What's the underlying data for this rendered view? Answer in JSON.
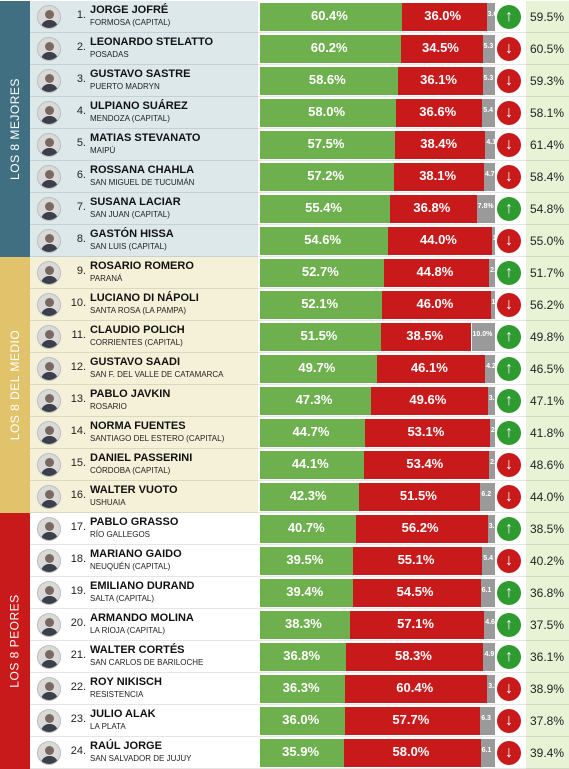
{
  "groups": [
    {
      "label": "LOS 8 MEJORES",
      "color": "#3f6f80",
      "band": "#dce8ea"
    },
    {
      "label": "LOS 8 DEL MEDIO",
      "color": "#e0c36a",
      "band": "#f5f0d8"
    },
    {
      "label": "LOS 8 PEORES",
      "color": "#c8191b",
      "band": "#ffffff"
    }
  ],
  "colors": {
    "positive": "#6eb04d",
    "negative": "#c8191b",
    "ns": "#9a9a9a",
    "up": "#2f9a2f",
    "down": "#c8191b"
  },
  "chart_data": {
    "type": "bar",
    "categories": [
      "JORGE JOFRÉ",
      "LEONARDO STELATTO",
      "GUSTAVO SASTRE",
      "ULPIANO SUÁREZ",
      "MATIAS STEVANATO",
      "ROSSANA CHAHLA",
      "SUSANA LACIAR",
      "GASTÓN HISSA",
      "ROSARIO ROMERO",
      "LUCIANO DI NÁPOLI",
      "CLAUDIO POLICH",
      "GUSTAVO SAADI",
      "PABLO JAVKIN",
      "NORMA FUENTES",
      "DANIEL PASSERINI",
      "WALTER VUOTO",
      "PABLO GRASSO",
      "MARIANO GAIDO",
      "EMILIANO DURAND",
      "ARMANDO MOLINA",
      "WALTER CORTÉS",
      "ROY NIKISCH",
      "JULIO ALAK",
      "RAÚL JORGE"
    ],
    "series": [
      {
        "values": [
          60.4,
          60.2,
          58.6,
          58.0,
          57.5,
          57.2,
          55.4,
          54.6,
          52.7,
          52.1,
          51.5,
          49.7,
          47.3,
          44.7,
          44.1,
          42.3,
          40.7,
          39.5,
          39.4,
          38.3,
          36.8,
          36.3,
          36.0,
          35.9
        ]
      },
      {
        "values": [
          36.0,
          34.5,
          36.1,
          36.6,
          38.4,
          38.1,
          36.8,
          44.0,
          44.8,
          46.0,
          38.5,
          46.1,
          49.6,
          53.1,
          53.4,
          51.5,
          56.2,
          55.1,
          54.5,
          57.1,
          58.3,
          60.4,
          57.7,
          58.0
        ]
      },
      {
        "values": [
          3.6,
          5.3,
          5.3,
          5.4,
          4.1,
          4.7,
          7.8,
          1.4,
          2.5,
          1.9,
          10.0,
          4.2,
          3.1,
          2.2,
          2.5,
          6.2,
          3.1,
          5.4,
          6.1,
          4.6,
          4.9,
          3.3,
          6.3,
          6.1
        ]
      }
    ],
    "ylim": [
      0,
      100
    ]
  },
  "rows": [
    {
      "rank": "1.",
      "name": "JORGE JOFRÉ",
      "city": "FORMOSA (CAPITAL)",
      "pos": 60.4,
      "pos_label": "60.4%",
      "neg": 36.0,
      "neg_label": "36.0%",
      "ns": 3.6,
      "ns_label": "3.6",
      "trend": "up",
      "prev": "59.5%"
    },
    {
      "rank": "2.",
      "name": "LEONARDO STELATTO",
      "city": "POSADAS",
      "pos": 60.2,
      "pos_label": "60.2%",
      "neg": 34.5,
      "neg_label": "34.5%",
      "ns": 5.3,
      "ns_label": "5.3",
      "trend": "down",
      "prev": "60.5%"
    },
    {
      "rank": "3.",
      "name": "GUSTAVO SASTRE",
      "city": "PUERTO MADRYN",
      "pos": 58.6,
      "pos_label": "58.6%",
      "neg": 36.1,
      "neg_label": "36.1%",
      "ns": 5.3,
      "ns_label": "5.3",
      "trend": "down",
      "prev": "59.3%"
    },
    {
      "rank": "4.",
      "name": "ULPIANO SUÁREZ",
      "city": "MENDOZA (CAPITAL)",
      "pos": 58.0,
      "pos_label": "58.0%",
      "neg": 36.6,
      "neg_label": "36.6%",
      "ns": 5.4,
      "ns_label": "5.4",
      "trend": "down",
      "prev": "58.1%"
    },
    {
      "rank": "5.",
      "name": "MATIAS STEVANATO",
      "city": "MAIPÚ",
      "pos": 57.5,
      "pos_label": "57.5%",
      "neg": 38.4,
      "neg_label": "38.4%",
      "ns": 4.1,
      "ns_label": "4.1",
      "trend": "down",
      "prev": "61.4%"
    },
    {
      "rank": "6.",
      "name": "ROSSANA CHAHLA",
      "city": "SAN MIGUEL DE TUCUMÁN",
      "pos": 57.2,
      "pos_label": "57.2%",
      "neg": 38.1,
      "neg_label": "38.1%",
      "ns": 4.7,
      "ns_label": "4.7",
      "trend": "down",
      "prev": "58.4%"
    },
    {
      "rank": "7.",
      "name": "SUSANA LACIAR",
      "city": "SAN JUAN (CAPITAL)",
      "pos": 55.4,
      "pos_label": "55.4%",
      "neg": 36.8,
      "neg_label": "36.8%",
      "ns": 7.8,
      "ns_label": "7.8%",
      "trend": "up",
      "prev": "54.8%"
    },
    {
      "rank": "8.",
      "name": "GASTÓN HISSA",
      "city": "SAN LUIS (CAPITAL)",
      "pos": 54.6,
      "pos_label": "54.6%",
      "neg": 44.0,
      "neg_label": "44.0%",
      "ns": 1.4,
      "ns_label": "1.4",
      "trend": "down",
      "prev": "55.0%"
    },
    {
      "rank": "9.",
      "name": "ROSARIO ROMERO",
      "city": "PARANÁ",
      "pos": 52.7,
      "pos_label": "52.7%",
      "neg": 44.8,
      "neg_label": "44.8%",
      "ns": 2.5,
      "ns_label": "2.5",
      "trend": "up",
      "prev": "51.7%"
    },
    {
      "rank": "10.",
      "name": "LUCIANO DI NÁPOLI",
      "city": "SANTA ROSA (LA PAMPA)",
      "pos": 52.1,
      "pos_label": "52.1%",
      "neg": 46.0,
      "neg_label": "46.0%",
      "ns": 1.9,
      "ns_label": "1.9",
      "trend": "down",
      "prev": "56.2%"
    },
    {
      "rank": "11.",
      "name": "CLAUDIO POLICH",
      "city": "CORRIENTES (CAPITAL)",
      "pos": 51.5,
      "pos_label": "51.5%",
      "neg": 38.5,
      "neg_label": "38.5%",
      "ns": 10.0,
      "ns_label": "10.0%",
      "trend": "up",
      "prev": "49.8%"
    },
    {
      "rank": "12.",
      "name": "GUSTAVO SAADI",
      "city": "SAN F. DEL VALLE DE CATAMARCA",
      "pos": 49.7,
      "pos_label": "49.7%",
      "neg": 46.1,
      "neg_label": "46.1%",
      "ns": 4.2,
      "ns_label": "4.2",
      "trend": "up",
      "prev": "46.5%"
    },
    {
      "rank": "13.",
      "name": "PABLO JAVKIN",
      "city": "ROSARIO",
      "pos": 47.3,
      "pos_label": "47.3%",
      "neg": 49.6,
      "neg_label": "49.6%",
      "ns": 3.1,
      "ns_label": "3.1",
      "trend": "up",
      "prev": "47.1%"
    },
    {
      "rank": "14.",
      "name": "NORMA FUENTES",
      "city": "SANTIAGO DEL ESTERO (CAPITAL)",
      "pos": 44.7,
      "pos_label": "44.7%",
      "neg": 53.1,
      "neg_label": "53.1%",
      "ns": 2.2,
      "ns_label": "2.2",
      "trend": "up",
      "prev": "41.8%"
    },
    {
      "rank": "15.",
      "name": "DANIEL PASSERINI",
      "city": "CÓRDOBA (CAPITAL)",
      "pos": 44.1,
      "pos_label": "44.1%",
      "neg": 53.4,
      "neg_label": "53.4%",
      "ns": 2.5,
      "ns_label": "2.5",
      "trend": "down",
      "prev": "48.6%"
    },
    {
      "rank": "16.",
      "name": "WALTER VUOTO",
      "city": "USHUAIA",
      "pos": 42.3,
      "pos_label": "42.3%",
      "neg": 51.5,
      "neg_label": "51.5%",
      "ns": 6.2,
      "ns_label": "6.2",
      "trend": "down",
      "prev": "44.0%"
    },
    {
      "rank": "17.",
      "name": "PABLO GRASSO",
      "city": "RÍO GALLEGOS",
      "pos": 40.7,
      "pos_label": "40.7%",
      "neg": 56.2,
      "neg_label": "56.2%",
      "ns": 3.1,
      "ns_label": "3.1",
      "trend": "up",
      "prev": "38.5%"
    },
    {
      "rank": "18.",
      "name": "MARIANO GAIDO",
      "city": "NEUQUÉN (CAPITAL)",
      "pos": 39.5,
      "pos_label": "39.5%",
      "neg": 55.1,
      "neg_label": "55.1%",
      "ns": 5.4,
      "ns_label": "5.4",
      "trend": "down",
      "prev": "40.2%"
    },
    {
      "rank": "19.",
      "name": "EMILIANO DURAND",
      "city": "SALTA (CAPITAL)",
      "pos": 39.4,
      "pos_label": "39.4%",
      "neg": 54.5,
      "neg_label": "54.5%",
      "ns": 6.1,
      "ns_label": "6.1",
      "trend": "up",
      "prev": "36.8%"
    },
    {
      "rank": "20.",
      "name": "ARMANDO MOLINA",
      "city": "LA RIOJA (CAPITAL)",
      "pos": 38.3,
      "pos_label": "38.3%",
      "neg": 57.1,
      "neg_label": "57.1%",
      "ns": 4.6,
      "ns_label": "4.6",
      "trend": "up",
      "prev": "37.5%"
    },
    {
      "rank": "21.",
      "name": "WALTER CORTÉS",
      "city": "SAN CARLOS DE BARILOCHE",
      "pos": 36.8,
      "pos_label": "36.8%",
      "neg": 58.3,
      "neg_label": "58.3%",
      "ns": 4.9,
      "ns_label": "4.9",
      "trend": "up",
      "prev": "36.1%"
    },
    {
      "rank": "22.",
      "name": "ROY NIKISCH",
      "city": "RESISTENCIA",
      "pos": 36.3,
      "pos_label": "36.3%",
      "neg": 60.4,
      "neg_label": "60.4%",
      "ns": 3.3,
      "ns_label": "3.3",
      "trend": "down",
      "prev": "38.9%"
    },
    {
      "rank": "23.",
      "name": "JULIO ALAK",
      "city": "LA PLATA",
      "pos": 36.0,
      "pos_label": "36.0%",
      "neg": 57.7,
      "neg_label": "57.7%",
      "ns": 6.3,
      "ns_label": "6.3",
      "trend": "down",
      "prev": "37.8%"
    },
    {
      "rank": "24.",
      "name": "RAÚL JORGE",
      "city": "SAN SALVADOR DE JUJUY",
      "pos": 35.9,
      "pos_label": "35.9%",
      "neg": 58.0,
      "neg_label": "58.0%",
      "ns": 6.1,
      "ns_label": "6.1",
      "trend": "down",
      "prev": "39.4%"
    }
  ]
}
